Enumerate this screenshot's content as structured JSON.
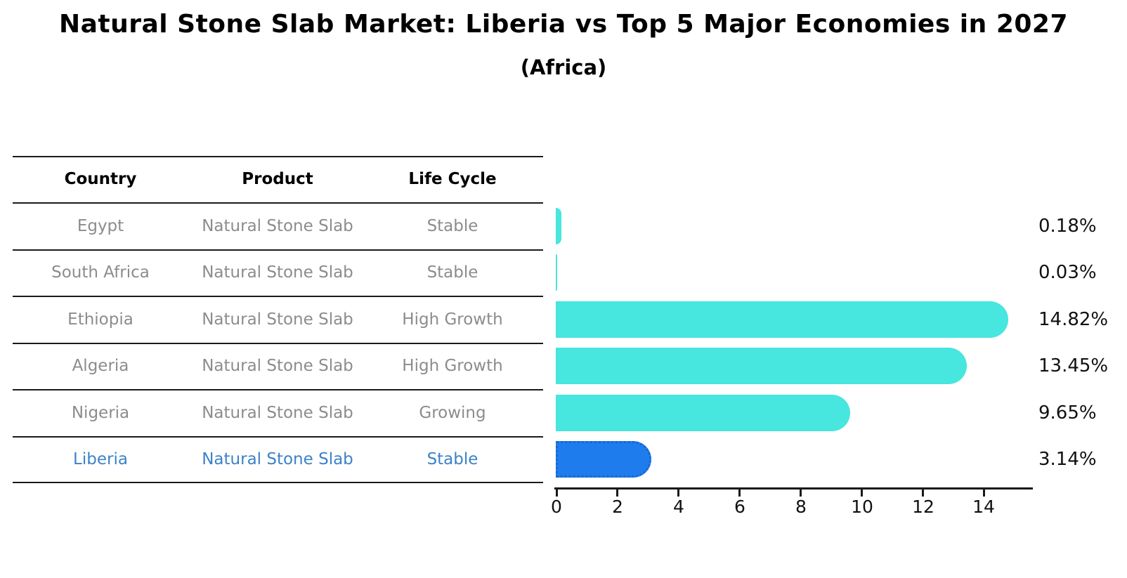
{
  "title": "Natural Stone Slab Market: Liberia vs Top 5 Major Economies in 2027",
  "subtitle": "(Africa)",
  "table": {
    "headers": [
      "Country",
      "Product",
      "Life Cycle"
    ],
    "rows": [
      {
        "country": "Egypt",
        "product": "Natural Stone Slab",
        "life_cycle": "Stable",
        "highlight": false
      },
      {
        "country": "South Africa",
        "product": "Natural Stone Slab",
        "life_cycle": "Stable",
        "highlight": false
      },
      {
        "country": "Ethiopia",
        "product": "Natural Stone Slab",
        "life_cycle": "High Growth",
        "highlight": false
      },
      {
        "country": "Algeria",
        "product": "Natural Stone Slab",
        "life_cycle": "High Growth",
        "highlight": false
      },
      {
        "country": "Nigeria",
        "product": "Natural Stone Slab",
        "life_cycle": "Growing",
        "highlight": false
      },
      {
        "country": "Liberia",
        "product": "Natural Stone Slab",
        "life_cycle": "Stable",
        "highlight": true
      }
    ]
  },
  "chart_data": {
    "type": "bar",
    "orientation": "horizontal",
    "title": "Natural Stone Slab Market: Liberia vs Top 5 Major Economies in 2027",
    "subtitle": "(Africa)",
    "categories": [
      "Egypt",
      "South Africa",
      "Ethiopia",
      "Algeria",
      "Nigeria",
      "Liberia"
    ],
    "values": [
      0.18,
      0.03,
      14.82,
      13.45,
      9.65,
      3.14
    ],
    "value_labels": [
      "0.18%",
      "0.03%",
      "14.82%",
      "13.45%",
      "9.65%",
      "3.14%"
    ],
    "x_ticks": [
      0,
      2,
      4,
      6,
      8,
      10,
      12,
      14
    ],
    "xlim": [
      0,
      15.6
    ],
    "grid": false,
    "legend": false,
    "bar_color": "#47e6de",
    "highlight_color": "#1e7cec",
    "highlight_border_color": "#1668d8",
    "highlight_index": 5
  },
  "palette": {
    "header_text": "#000000",
    "row_text": "#8c8c8c",
    "highlight_row_text": "#3c82c8",
    "line_color": "#1a1a1a",
    "value_text": "#111111"
  }
}
